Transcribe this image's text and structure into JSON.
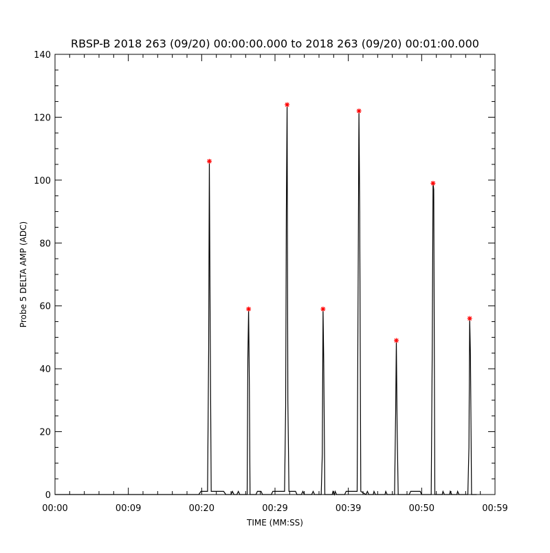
{
  "chart_data": {
    "type": "line",
    "title": "RBSP-B 2018 263 (09/20) 00:00:00.000 to 2018 263 (09/20) 00:01:00.000",
    "xlabel": "TIME (MM:SS)",
    "ylabel": "Probe 5 DELTA AMP (ADC)",
    "xlim_seconds": [
      0,
      60
    ],
    "ylim": [
      0,
      140
    ],
    "x_ticks": [
      {
        "label": "00:00",
        "value": 0
      },
      {
        "label": "00:09",
        "value": 10
      },
      {
        "label": "00:20",
        "value": 20
      },
      {
        "label": "00:29",
        "value": 30
      },
      {
        "label": "00:39",
        "value": 40
      },
      {
        "label": "00:50",
        "value": 50
      },
      {
        "label": "00:59",
        "value": 60
      }
    ],
    "y_ticks": [
      0,
      20,
      40,
      60,
      80,
      100,
      120,
      140
    ],
    "grid": false,
    "line_color": "#000000",
    "peak_marker_color": "#ff0000",
    "series": [
      {
        "values": [
          [
            0,
            0
          ],
          [
            19.6,
            0
          ],
          [
            19.9,
            1
          ],
          [
            20.8,
            1
          ],
          [
            20.95,
            46
          ],
          [
            21.05,
            106
          ],
          [
            21.15,
            58
          ],
          [
            21.3,
            1
          ],
          [
            23.0,
            1
          ],
          [
            23.3,
            0
          ],
          [
            24.0,
            0
          ],
          [
            24.2,
            1
          ],
          [
            24.4,
            0
          ],
          [
            24.8,
            0
          ],
          [
            25.0,
            1
          ],
          [
            25.2,
            0
          ],
          [
            26.2,
            0
          ],
          [
            26.3,
            43
          ],
          [
            26.4,
            59
          ],
          [
            26.5,
            35
          ],
          [
            26.6,
            0
          ],
          [
            27.4,
            0
          ],
          [
            27.6,
            1
          ],
          [
            28.1,
            1
          ],
          [
            28.3,
            0
          ],
          [
            29.5,
            0
          ],
          [
            29.7,
            1
          ],
          [
            31.3,
            1
          ],
          [
            31.45,
            28
          ],
          [
            31.55,
            90
          ],
          [
            31.65,
            124
          ],
          [
            31.75,
            30
          ],
          [
            31.9,
            1
          ],
          [
            32.8,
            1
          ],
          [
            33.0,
            0
          ],
          [
            33.6,
            0
          ],
          [
            33.8,
            1
          ],
          [
            34.0,
            0
          ],
          [
            35.0,
            0
          ],
          [
            35.2,
            1
          ],
          [
            35.4,
            0
          ],
          [
            36.3,
            0
          ],
          [
            36.45,
            13
          ],
          [
            36.55,
            59
          ],
          [
            36.65,
            42
          ],
          [
            36.8,
            0
          ],
          [
            37.8,
            0
          ],
          [
            37.9,
            1
          ],
          [
            38.1,
            0
          ],
          [
            38.2,
            1
          ],
          [
            38.4,
            0
          ],
          [
            39.5,
            0
          ],
          [
            39.7,
            1
          ],
          [
            41.2,
            1
          ],
          [
            41.35,
            75
          ],
          [
            41.45,
            122
          ],
          [
            41.55,
            90
          ],
          [
            41.7,
            1
          ],
          [
            42.4,
            0
          ],
          [
            42.6,
            1
          ],
          [
            42.8,
            0
          ],
          [
            43.4,
            0
          ],
          [
            43.5,
            1
          ],
          [
            43.7,
            0
          ],
          [
            45.0,
            0
          ],
          [
            45.1,
            1
          ],
          [
            45.3,
            0
          ],
          [
            46.3,
            0
          ],
          [
            46.45,
            26
          ],
          [
            46.55,
            49
          ],
          [
            46.65,
            22
          ],
          [
            46.8,
            0
          ],
          [
            48.3,
            0
          ],
          [
            48.5,
            1
          ],
          [
            49.8,
            1
          ],
          [
            50.0,
            0
          ],
          [
            51.3,
            0
          ],
          [
            51.45,
            49
          ],
          [
            51.55,
            99
          ],
          [
            51.65,
            97
          ],
          [
            51.8,
            0
          ],
          [
            52.8,
            0
          ],
          [
            52.9,
            1
          ],
          [
            53.1,
            0
          ],
          [
            53.8,
            0
          ],
          [
            53.9,
            1
          ],
          [
            54.1,
            0
          ],
          [
            54.8,
            0
          ],
          [
            54.9,
            1
          ],
          [
            55.1,
            0
          ],
          [
            56.3,
            0
          ],
          [
            56.45,
            15
          ],
          [
            56.55,
            56
          ],
          [
            56.65,
            44
          ],
          [
            56.8,
            0
          ],
          [
            57.5,
            0
          ]
        ]
      }
    ],
    "peaks": [
      {
        "x": 21.05,
        "y": 106
      },
      {
        "x": 26.4,
        "y": 59
      },
      {
        "x": 31.65,
        "y": 124
      },
      {
        "x": 36.55,
        "y": 59
      },
      {
        "x": 41.45,
        "y": 122
      },
      {
        "x": 46.55,
        "y": 49
      },
      {
        "x": 51.55,
        "y": 99
      },
      {
        "x": 56.55,
        "y": 56
      }
    ]
  }
}
